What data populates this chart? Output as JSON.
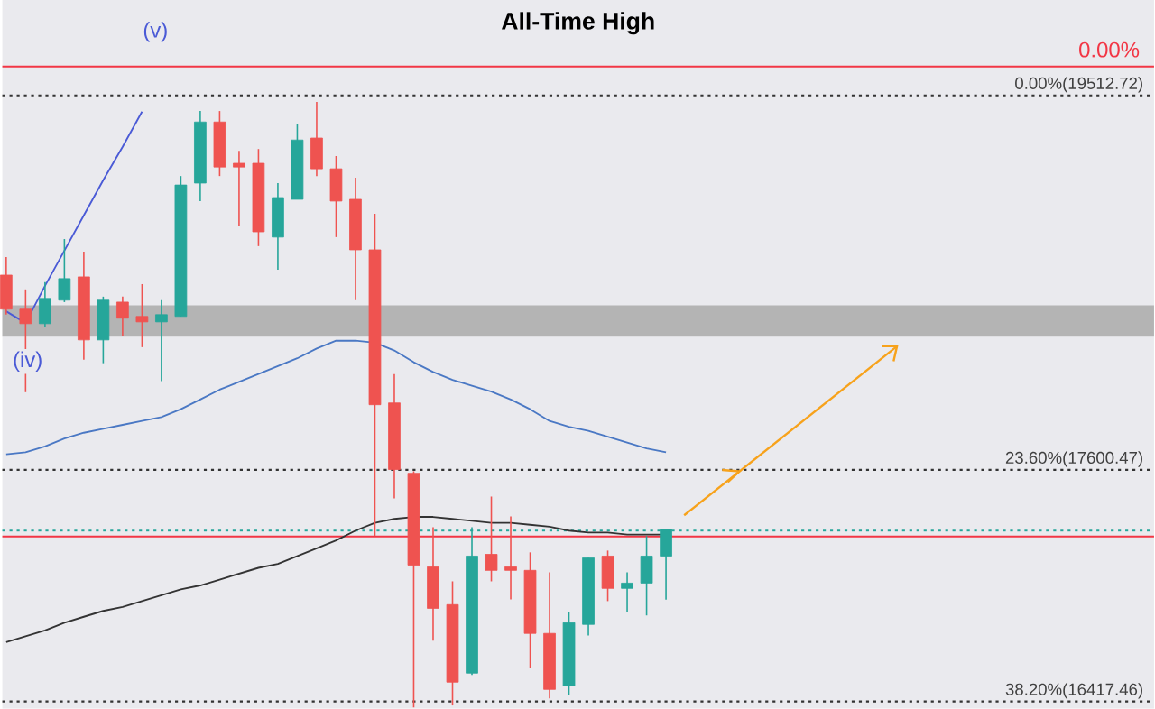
{
  "chart_data": {
    "type": "candlestick",
    "title": "All-Time High",
    "categories": [
      null,
      null,
      null,
      null,
      null,
      null,
      null,
      null,
      null,
      null,
      null,
      null,
      null,
      null,
      null,
      null,
      null,
      null,
      null,
      null,
      null,
      null,
      null,
      null,
      null,
      null,
      null,
      null,
      null,
      null,
      null,
      null,
      null,
      null,
      null
    ],
    "ohlc": [
      [
        18595,
        18687,
        18393,
        18421
      ],
      [
        18421,
        18522,
        17997,
        18347
      ],
      [
        18347,
        18559,
        18329,
        18476
      ],
      [
        18467,
        18779,
        18457,
        18577
      ],
      [
        18586,
        18715,
        18163,
        18264
      ],
      [
        18264,
        18485,
        18145,
        18467
      ],
      [
        18457,
        18485,
        18283,
        18375
      ],
      [
        18384,
        18549,
        18227,
        18356
      ],
      [
        18356,
        18467,
        18053,
        18393
      ],
      [
        18384,
        19101,
        18384,
        19055
      ],
      [
        19065,
        19433,
        18973,
        19377
      ],
      [
        19377,
        19433,
        19101,
        19147
      ],
      [
        19166,
        19230,
        18844,
        19147
      ],
      [
        19166,
        19239,
        18743,
        18816
      ],
      [
        18789,
        19065,
        18623,
        18991
      ],
      [
        18982,
        19368,
        18982,
        19285
      ],
      [
        19295,
        19479,
        19101,
        19138
      ],
      [
        19138,
        19203,
        18789,
        18973
      ],
      [
        18982,
        19092,
        18467,
        18724
      ],
      [
        18724,
        18908,
        17262,
        17933
      ],
      [
        17942,
        18089,
        17455,
        17602
      ],
      [
        17583,
        17593,
        16387,
        17114
      ],
      [
        17105,
        17307,
        16728,
        16893
      ],
      [
        16912,
        17031,
        16397,
        16516
      ],
      [
        16562,
        17307,
        16553,
        17160
      ],
      [
        17169,
        17464,
        17031,
        17087
      ],
      [
        17105,
        17363,
        16939,
        17087
      ],
      [
        17087,
        17179,
        16590,
        16765
      ],
      [
        16765,
        17077,
        16433,
        16479
      ],
      [
        16498,
        16875,
        16452,
        16820
      ],
      [
        16811,
        17151,
        16755,
        17151
      ],
      [
        17160,
        17188,
        16930,
        16995
      ],
      [
        16995,
        17077,
        16875,
        17022
      ],
      [
        17022,
        17262,
        16857,
        17160
      ],
      [
        17160,
        17298,
        16938,
        17298
      ]
    ],
    "colors": [
      "#ef5350",
      "#ef5350",
      "#26a69a",
      "#26a69a",
      "#ef5350",
      "#26a69a",
      "#ef5350",
      "#ef5350",
      "#26a69a",
      "#26a69a",
      "#26a69a",
      "#ef5350",
      "#ef5350",
      "#ef5350",
      "#26a69a",
      "#26a69a",
      "#ef5350",
      "#ef5350",
      "#ef5350",
      "#ef5350",
      "#ef5350",
      "#ef5350",
      "#ef5350",
      "#ef5350",
      "#26a69a",
      "#ef5350",
      "#ef5350",
      "#ef5350",
      "#ef5350",
      "#26a69a",
      "#26a69a",
      "#ef5350",
      "#26a69a",
      "#26a69a",
      "#26a69a"
    ],
    "series": [
      {
        "type": "line",
        "color": "#4a78c4",
        "values": [
          17680,
          17690,
          17720,
          17760,
          17790,
          17810,
          17830,
          17850,
          17870,
          17910,
          17960,
          18010,
          18050,
          18090,
          18130,
          18170,
          18220,
          18260,
          18260,
          18250,
          18210,
          18150,
          18100,
          18060,
          18030,
          18000,
          17960,
          17910,
          17850,
          17820,
          17800,
          17770,
          17740,
          17710,
          17690
        ]
      },
      {
        "type": "line",
        "color": "#4a5ad6",
        "values": [
          18410,
          18350,
          18540,
          18720,
          18900,
          19080,
          19250,
          19430,
          null,
          null,
          null,
          null,
          null,
          null,
          null,
          null,
          null,
          null,
          null,
          null,
          null,
          null,
          null,
          null,
          null,
          null,
          null,
          null,
          null,
          null,
          null,
          null,
          null,
          null,
          null
        ]
      },
      {
        "type": "line",
        "color": "#333333",
        "values": [
          16720,
          16750,
          16780,
          16820,
          16850,
          16880,
          16900,
          16930,
          16960,
          16990,
          17010,
          17040,
          17070,
          17100,
          17120,
          17160,
          17200,
          17240,
          17290,
          17330,
          17350,
          17360,
          17360,
          17350,
          17340,
          17330,
          17330,
          17320,
          17310,
          17290,
          17280,
          17280,
          17270,
          17270,
          17270
        ]
      }
    ],
    "ylim": [
      16380,
      20000
    ],
    "tick_labels": false,
    "ref_lines": [
      {
        "axis": "y",
        "value": 19660,
        "color": "#f23645",
        "line_style": "solid"
      },
      {
        "axis": "y",
        "value": 19512.72,
        "label": "0.00%(19512.72)",
        "color": "#333333",
        "line_style": "dotted"
      },
      {
        "axis": "y",
        "value": 17600.47,
        "label": "23.60%(17600.47)",
        "color": "#333333",
        "line_style": "dotted"
      },
      {
        "axis": "y",
        "value": 17290,
        "color": "#26a69a",
        "line_style": "dotted"
      },
      {
        "axis": "y",
        "value": 17260,
        "color": "#f23645",
        "line_style": "solid"
      },
      {
        "axis": "y",
        "value": 16417.46,
        "label": "38.20%(16417.46)",
        "color": "#333333",
        "line_style": "dotted"
      }
    ],
    "bands": [
      {
        "axis": "y",
        "from": 18280,
        "to": 18440,
        "color": "#b4b4b4"
      }
    ],
    "annotations": [
      "0.00%",
      "(v)",
      "(iv)"
    ]
  }
}
